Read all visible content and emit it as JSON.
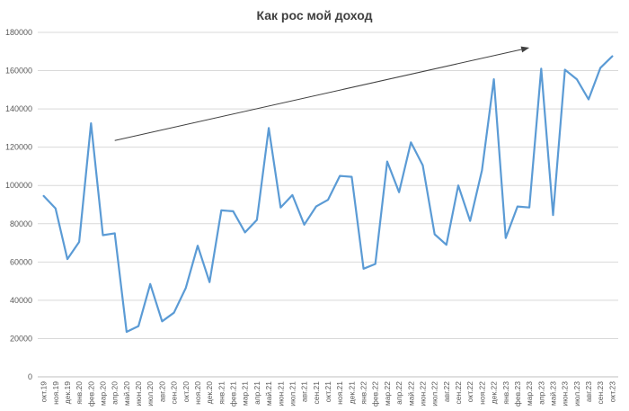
{
  "chart_data": {
    "type": "line",
    "title": "Как рос мой доход",
    "xlabel": "",
    "ylabel": "",
    "ylim": [
      0,
      180000
    ],
    "yticks": [
      0,
      20000,
      40000,
      60000,
      80000,
      100000,
      120000,
      140000,
      160000,
      180000
    ],
    "grid": true,
    "legend": "none",
    "categories": [
      "окт.19",
      "ноя.19",
      "дек.19",
      "янв.20",
      "фев.20",
      "мар.20",
      "апр.20",
      "май.20",
      "июн.20",
      "июл.20",
      "авг.20",
      "сен.20",
      "окт.20",
      "ноя.20",
      "дек.20",
      "янв.21",
      "фев.21",
      "мар.21",
      "апр.21",
      "май.21",
      "июн.21",
      "июл.21",
      "авг.21",
      "сен.21",
      "окт.21",
      "ноя.21",
      "дек.21",
      "янв.22",
      "фев.22",
      "мар.22",
      "апр.22",
      "май.22",
      "июн.22",
      "июл.22",
      "авг.22",
      "сен.22",
      "окт.22",
      "ноя.22",
      "дек.22",
      "янв.23",
      "фев.23",
      "мар.23",
      "апр.23",
      "май.23",
      "июн.23",
      "июл.23",
      "авг.23",
      "сен.23",
      "окт.23"
    ],
    "series": [
      {
        "color": "#5b9bd5",
        "values": [
          94500,
          88000,
          61500,
          70500,
          132500,
          74000,
          75000,
          23500,
          26500,
          48500,
          29000,
          33500,
          46500,
          68500,
          49500,
          87000,
          86500,
          75500,
          82000,
          130000,
          88500,
          95000,
          79500,
          89000,
          92500,
          105000,
          104500,
          56500,
          59000,
          112500,
          96500,
          122500,
          110500,
          74500,
          69000,
          100000,
          81500,
          108000,
          155500,
          72500,
          89000,
          88500,
          161000,
          84500,
          160500,
          155500,
          145000,
          161500,
          167500
        ]
      }
    ],
    "annotations": [
      {
        "type": "arrow",
        "from": {
          "x": "апр.20",
          "y": 123500
        },
        "to": {
          "x": "мар.23",
          "y": 172000
        },
        "color": "#404040"
      }
    ]
  }
}
